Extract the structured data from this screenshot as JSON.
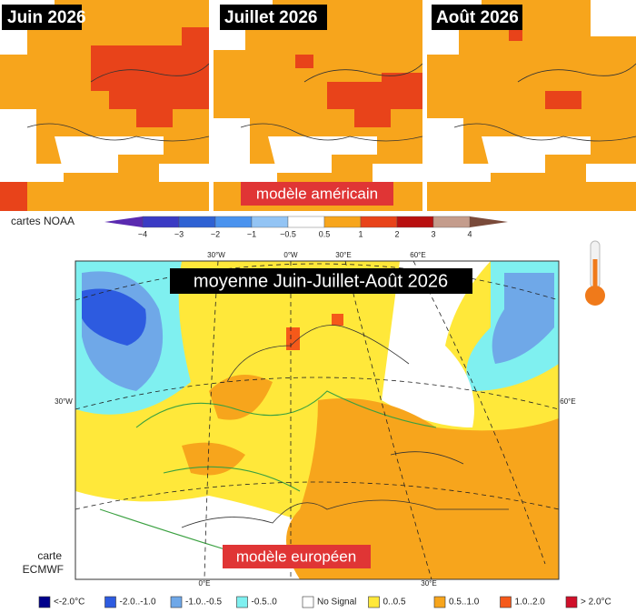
{
  "top_maps": [
    {
      "title": "Juin 2026"
    },
    {
      "title": "Juillet 2026"
    },
    {
      "title": "Août 2026"
    }
  ],
  "top_caption": "modèle américain",
  "top_source": "cartes NOAA",
  "noaa_scale": {
    "ticks": [
      "−4",
      "−3",
      "−2",
      "−1",
      "−0.5",
      "0.5",
      "1",
      "2",
      "3",
      "4"
    ],
    "colors": [
      "#5a2ab0",
      "#3b3bc4",
      "#2f62d3",
      "#4a93ee",
      "#93c4f4",
      "#ffffff",
      "#f7a51c",
      "#e8431a",
      "#b81010",
      "#c49c8c",
      "#7a4a3a"
    ]
  },
  "main_map": {
    "title": "moyenne Juin-Juillet-Août 2026",
    "caption": "modèle européen",
    "source": [
      "carte",
      "ECMWF"
    ],
    "graticule_labels": [
      "30°W",
      "0°W",
      "30°E",
      "60°E",
      "30°W",
      "60°E",
      "0°E",
      "30°E"
    ]
  },
  "ecmwf_legend": [
    {
      "label": "<-2.0°C",
      "color": "#00008b"
    },
    {
      "label": "-2.0..-1.0",
      "color": "#2d5be0"
    },
    {
      "label": "-1.0..-0.5",
      "color": "#6fa8e8"
    },
    {
      "label": "-0.5..0",
      "color": "#7ff0f0"
    },
    {
      "label": "No Signal",
      "color": "#ffffff"
    },
    {
      "label": "0..0.5",
      "color": "#ffe83a"
    },
    {
      "label": "0.5..1.0",
      "color": "#f7a51c"
    },
    {
      "label": "1.0..2.0",
      "color": "#f5591a"
    },
    {
      "label": "> 2.0°C",
      "color": "#d0102a"
    }
  ]
}
